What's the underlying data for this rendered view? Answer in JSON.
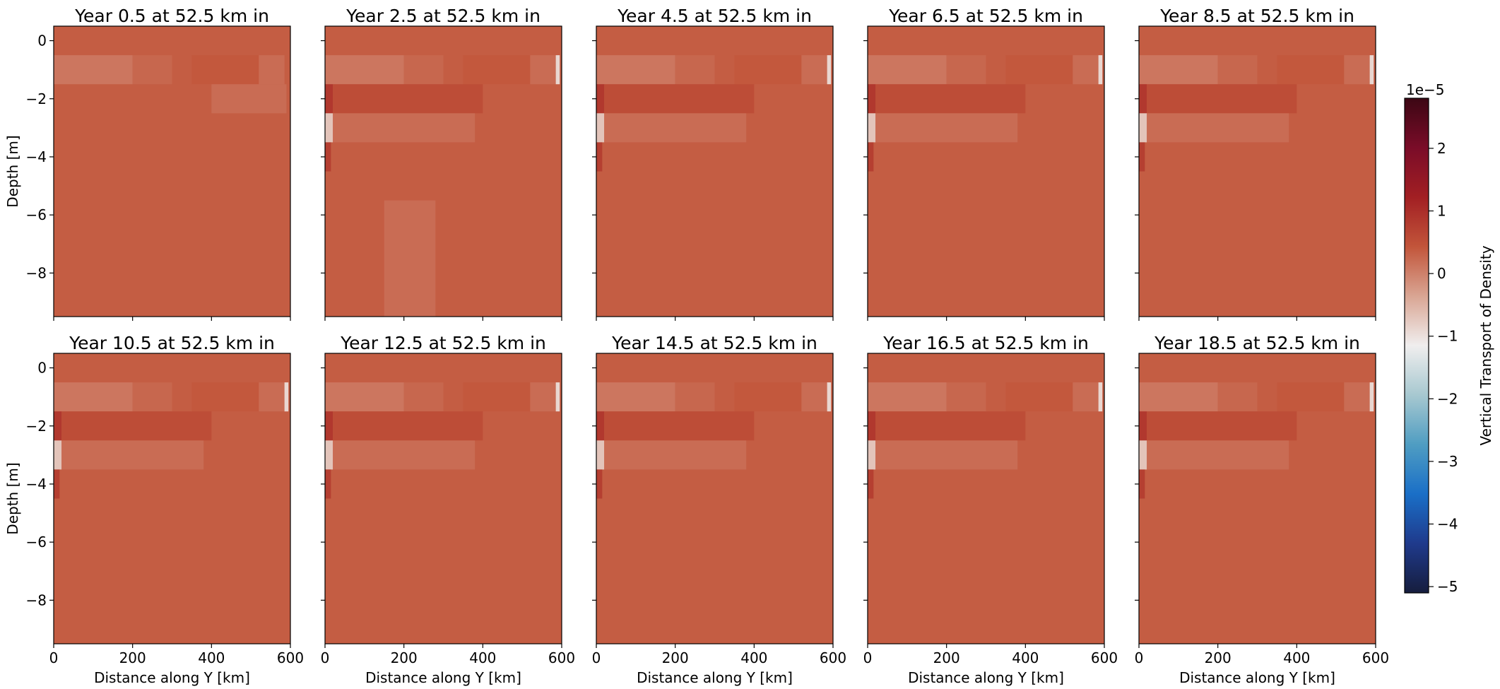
{
  "figure": {
    "colorbar": {
      "label": "Vertical Transport of Density",
      "exponent_label": "1e−5",
      "ticks": [
        2,
        1,
        0,
        -1,
        -2,
        -3,
        -4,
        -5
      ],
      "tick_labels": [
        "2",
        "1",
        "0",
        "−1",
        "−2",
        "−3",
        "−4",
        "−5"
      ],
      "vmin": -5.1,
      "vmax": 2.8,
      "colormap": "balance",
      "colors": [
        "#161d3d",
        "#1f3a8c",
        "#1a6fc7",
        "#4f9dc2",
        "#a7c8d0",
        "#f0eeee",
        "#d9a593",
        "#c2553a",
        "#a21f23",
        "#7a0c28",
        "#3c0714"
      ]
    }
  },
  "chart_data": [
    {
      "type": "heatmap",
      "title": "Year 0.5 at 52.5 km in",
      "xlabel": "",
      "ylabel": "Depth [m]",
      "xlim": [
        0,
        600
      ],
      "ylim": [
        -9.5,
        0.5
      ],
      "xticks": [
        0,
        200,
        400,
        600
      ],
      "yticks": [
        0,
        -2,
        -4,
        -6,
        -8
      ],
      "value_range_approx": [
        0.3,
        0.6
      ],
      "background_value_approx": 0.35
    },
    {
      "type": "heatmap",
      "title": "Year 2.5 at 52.5 km in",
      "xlabel": "",
      "ylabel": "",
      "xlim": [
        0,
        600
      ],
      "ylim": [
        -9.5,
        0.5
      ],
      "xticks": [
        0,
        200,
        400,
        600
      ],
      "yticks": [
        0,
        -2,
        -4,
        -6,
        -8
      ],
      "value_range_approx": [
        -0.3,
        0.9
      ],
      "background_value_approx": 0.35
    },
    {
      "type": "heatmap",
      "title": "Year 4.5 at 52.5 km in",
      "xlabel": "",
      "ylabel": "",
      "xlim": [
        0,
        600
      ],
      "ylim": [
        -9.5,
        0.5
      ],
      "xticks": [
        0,
        200,
        400,
        600
      ],
      "yticks": [
        0,
        -2,
        -4,
        -6,
        -8
      ],
      "value_range_approx": [
        -0.8,
        0.9
      ],
      "background_value_approx": 0.35
    },
    {
      "type": "heatmap",
      "title": "Year 6.5 at 52.5 km in",
      "xlabel": "",
      "ylabel": "",
      "xlim": [
        0,
        600
      ],
      "ylim": [
        -9.5,
        0.5
      ],
      "xticks": [
        0,
        200,
        400,
        600
      ],
      "yticks": [
        0,
        -2,
        -4,
        -6,
        -8
      ],
      "value_range_approx": [
        -0.8,
        0.9
      ],
      "background_value_approx": 0.35
    },
    {
      "type": "heatmap",
      "title": "Year 8.5 at 52.5 km in",
      "xlabel": "",
      "ylabel": "",
      "xlim": [
        0,
        600
      ],
      "ylim": [
        -9.5,
        0.5
      ],
      "xticks": [
        0,
        200,
        400,
        600
      ],
      "yticks": [
        0,
        -2,
        -4,
        -6,
        -8
      ],
      "value_range_approx": [
        -0.8,
        0.9
      ],
      "background_value_approx": 0.35
    },
    {
      "type": "heatmap",
      "title": "Year 10.5 at 52.5 km in",
      "xlabel": "Distance along Y [km]",
      "ylabel": "Depth [m]",
      "xlim": [
        0,
        600
      ],
      "ylim": [
        -9.5,
        0.5
      ],
      "xticks": [
        0,
        200,
        400,
        600
      ],
      "yticks": [
        0,
        -2,
        -4,
        -6,
        -8
      ],
      "value_range_approx": [
        -0.8,
        0.9
      ],
      "background_value_approx": 0.35
    },
    {
      "type": "heatmap",
      "title": "Year 12.5 at 52.5 km in",
      "xlabel": "Distance along Y [km]",
      "ylabel": "",
      "xlim": [
        0,
        600
      ],
      "ylim": [
        -9.5,
        0.5
      ],
      "xticks": [
        0,
        200,
        400,
        600
      ],
      "yticks": [
        0,
        -2,
        -4,
        -6,
        -8
      ],
      "value_range_approx": [
        -0.8,
        0.9
      ],
      "background_value_approx": 0.35
    },
    {
      "type": "heatmap",
      "title": "Year 14.5 at 52.5 km in",
      "xlabel": "Distance along Y [km]",
      "ylabel": "",
      "xlim": [
        0,
        600
      ],
      "ylim": [
        -9.5,
        0.5
      ],
      "xticks": [
        0,
        200,
        400,
        600
      ],
      "yticks": [
        0,
        -2,
        -4,
        -6,
        -8
      ],
      "value_range_approx": [
        -0.8,
        0.9
      ],
      "background_value_approx": 0.35
    },
    {
      "type": "heatmap",
      "title": "Year 16.5 at 52.5 km in",
      "xlabel": "Distance along Y [km]",
      "ylabel": "",
      "xlim": [
        0,
        600
      ],
      "ylim": [
        -9.5,
        0.5
      ],
      "xticks": [
        0,
        200,
        400,
        600
      ],
      "yticks": [
        0,
        -2,
        -4,
        -6,
        -8
      ],
      "value_range_approx": [
        -0.8,
        0.9
      ],
      "background_value_approx": 0.35
    },
    {
      "type": "heatmap",
      "title": "Year 18.5 at 52.5 km in",
      "xlabel": "Distance along Y [km]",
      "ylabel": "",
      "xlim": [
        0,
        600
      ],
      "ylim": [
        -9.5,
        0.5
      ],
      "xticks": [
        0,
        200,
        400,
        600
      ],
      "yticks": [
        0,
        -2,
        -4,
        -6,
        -8
      ],
      "value_range_approx": [
        -0.8,
        0.9
      ],
      "background_value_approx": 0.35
    }
  ]
}
